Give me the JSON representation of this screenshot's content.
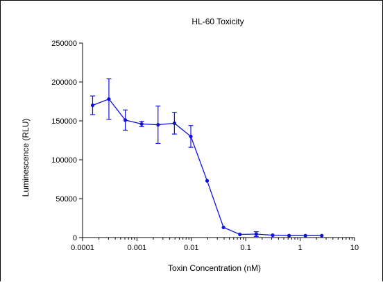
{
  "chart_data": {
    "type": "line",
    "title": "HL-60 Toxicity",
    "xlabel": "Toxin Concentration (nM)",
    "ylabel": "Luminescence (RLU)",
    "xscale": "log",
    "xlim": [
      0.0001,
      10
    ],
    "ylim": [
      0,
      250000
    ],
    "x_ticks": [
      0.0001,
      0.001,
      0.01,
      0.1,
      1,
      10
    ],
    "x_tick_labels": [
      "0.0001",
      "0.001",
      "0.01",
      "0.1",
      "1",
      "10"
    ],
    "y_ticks": [
      0,
      50000,
      100000,
      150000,
      200000,
      250000
    ],
    "y_tick_labels": [
      "0",
      "50000",
      "100000",
      "150000",
      "200000",
      "250000"
    ],
    "grid": false,
    "legend": "none",
    "series_color": "#1010e0",
    "series": [
      {
        "x": [
          0.000153,
          0.000305,
          0.00061,
          0.00122,
          0.00244,
          0.00488,
          0.00977,
          0.0195,
          0.039,
          0.078,
          0.156,
          0.3125,
          0.625,
          1.25,
          2.5
        ],
        "y": [
          170000,
          178000,
          151000,
          146000,
          145000,
          147000,
          130000,
          73000,
          13000,
          4000,
          4500,
          3000,
          2500,
          2500,
          2500
        ],
        "err": [
          12000,
          26000,
          13000,
          3500,
          24000,
          14000,
          14000,
          0,
          0,
          0,
          3000,
          0,
          0,
          0,
          0
        ]
      }
    ]
  }
}
